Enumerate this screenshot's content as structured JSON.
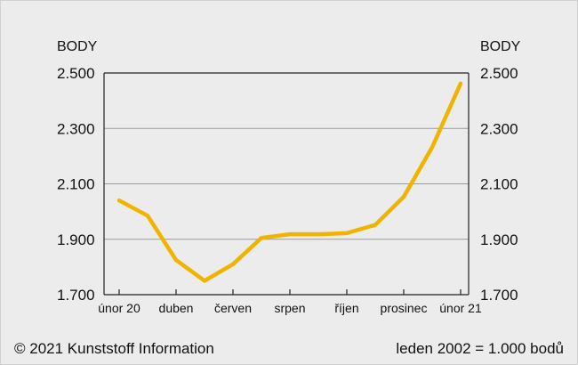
{
  "chart_data": {
    "type": "line",
    "ylabel_left": "BODY",
    "ylabel_right": "BODY",
    "yticks": [
      "1.700",
      "1.900",
      "2.100",
      "2.300",
      "2.500"
    ],
    "ytick_values": [
      1700,
      1900,
      2100,
      2300,
      2500
    ],
    "ylim": [
      1700,
      2500
    ],
    "xticks": [
      "únor 20",
      "duben",
      "červen",
      "srpen",
      "říjen",
      "prosinec",
      "únor 21"
    ],
    "x": [
      "únor 20",
      "březen 20",
      "duben 20",
      "květen 20",
      "červen 20",
      "červenec 20",
      "srpen 20",
      "září 20",
      "říjen 20",
      "listopad 20",
      "prosinec 20",
      "leden 21",
      "únor 21"
    ],
    "series": [
      {
        "values": [
          2040,
          1985,
          1825,
          1750,
          1810,
          1905,
          1918,
          1918,
          1922,
          1952,
          2053,
          2232,
          2462
        ]
      }
    ],
    "grid": "horizontal",
    "line_color": "#f0b400"
  },
  "footer": {
    "copyright": "© 2021 Kunststoff Information",
    "note": "leden 2002 = 1.000 bodů"
  }
}
